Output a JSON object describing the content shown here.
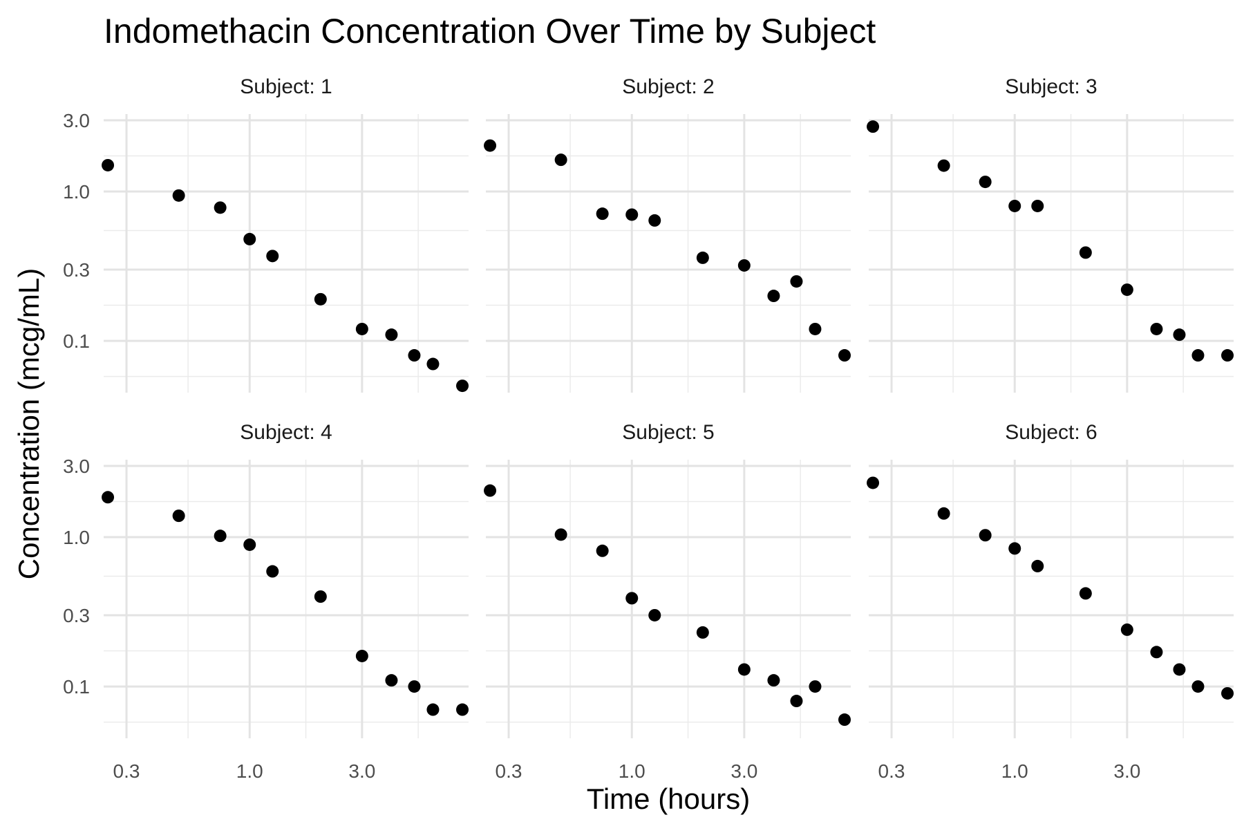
{
  "chart_data": {
    "type": "scatter",
    "title": "Indomethacin Concentration Over Time by Subject",
    "xlabel": "Time (hours)",
    "ylabel": "Concentration (mcg/mL)",
    "x_scale": "log10",
    "y_scale": "log10",
    "xlim": [
      0.24,
      8.5
    ],
    "ylim": [
      0.045,
      3.3
    ],
    "x_ticks": [
      0.3,
      1.0,
      3.0
    ],
    "x_tick_labels": [
      "0.3",
      "1.0",
      "3.0"
    ],
    "y_ticks": [
      0.1,
      0.3,
      1.0,
      3.0
    ],
    "y_tick_labels": [
      "0.1",
      "0.3",
      "1.0",
      "3.0"
    ],
    "grid": true,
    "legend": "none",
    "facet_label_prefix": "Subject: ",
    "point_color": "#000000",
    "panels": [
      {
        "subject": "1",
        "x": [
          0.25,
          0.5,
          0.75,
          1.0,
          1.25,
          2.0,
          3.0,
          4.0,
          5.0,
          6.0,
          8.0
        ],
        "y": [
          1.5,
          0.94,
          0.78,
          0.48,
          0.37,
          0.19,
          0.12,
          0.11,
          0.08,
          0.07,
          0.05
        ]
      },
      {
        "subject": "2",
        "x": [
          0.25,
          0.5,
          0.75,
          1.0,
          1.25,
          2.0,
          3.0,
          4.0,
          5.0,
          6.0,
          8.0
        ],
        "y": [
          2.03,
          1.63,
          0.71,
          0.7,
          0.64,
          0.36,
          0.32,
          0.2,
          0.25,
          0.12,
          0.08
        ]
      },
      {
        "subject": "3",
        "x": [
          0.25,
          0.5,
          0.75,
          1.0,
          1.25,
          2.0,
          3.0,
          4.0,
          5.0,
          6.0,
          8.0
        ],
        "y": [
          2.72,
          1.49,
          1.16,
          0.8,
          0.8,
          0.39,
          0.22,
          0.12,
          0.11,
          0.08,
          0.08
        ]
      },
      {
        "subject": "4",
        "x": [
          0.25,
          0.5,
          0.75,
          1.0,
          1.25,
          2.0,
          3.0,
          4.0,
          5.0,
          6.0,
          8.0
        ],
        "y": [
          1.85,
          1.39,
          1.02,
          0.89,
          0.59,
          0.4,
          0.16,
          0.11,
          0.1,
          0.07,
          0.07
        ]
      },
      {
        "subject": "5",
        "x": [
          0.25,
          0.5,
          0.75,
          1.0,
          1.25,
          2.0,
          3.0,
          4.0,
          5.0,
          6.0,
          8.0
        ],
        "y": [
          2.05,
          1.04,
          0.81,
          0.39,
          0.3,
          0.23,
          0.13,
          0.11,
          0.08,
          0.1,
          0.06
        ]
      },
      {
        "subject": "6",
        "x": [
          0.25,
          0.5,
          0.75,
          1.0,
          1.25,
          2.0,
          3.0,
          4.0,
          5.0,
          6.0,
          8.0
        ],
        "y": [
          2.31,
          1.44,
          1.03,
          0.84,
          0.64,
          0.42,
          0.24,
          0.17,
          0.13,
          0.1,
          0.09
        ]
      }
    ]
  }
}
